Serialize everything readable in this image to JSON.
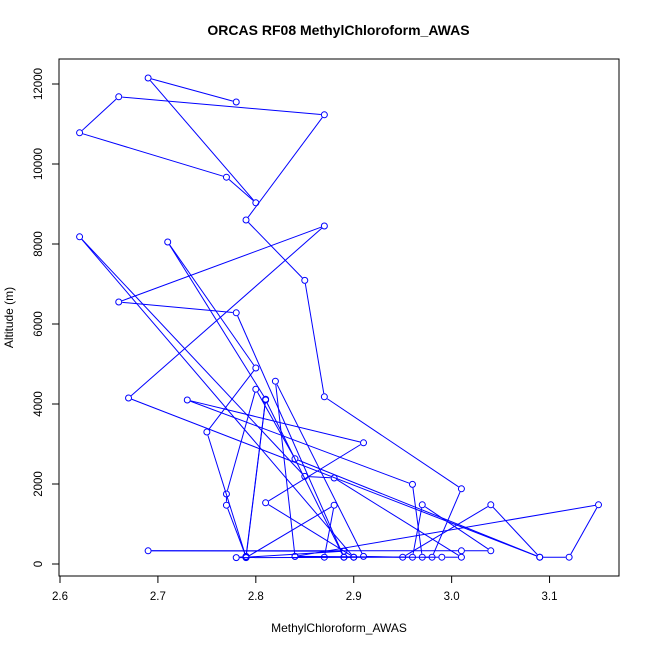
{
  "chart_data": {
    "type": "line",
    "title": "ORCAS RF08 MethylChloroform_AWAS",
    "xlabel": "MethylChloroform_AWAS",
    "ylabel": "Altitude (m)",
    "xlim": [
      2.6,
      3.16
    ],
    "ylim": [
      0,
      12500
    ],
    "x_ticks": [
      2.6,
      2.7,
      2.8,
      2.9,
      3.0,
      3.1
    ],
    "x_tick_labels": [
      "2.6",
      "2.7",
      "2.8",
      "2.9",
      "3.0",
      "3.1"
    ],
    "y_ticks": [
      0,
      2000,
      4000,
      6000,
      8000,
      10000,
      12000
    ],
    "y_tick_labels": [
      "0",
      "2000",
      "4000",
      "6000",
      "8000",
      "10000",
      "12000"
    ],
    "grid": false,
    "line_color": "#0000ff",
    "series": [
      {
        "name": "",
        "points": [
          [
            2.78,
            11550
          ],
          [
            2.69,
            12150
          ],
          [
            2.8,
            9030
          ],
          [
            2.77,
            9670
          ],
          [
            2.62,
            10780
          ],
          [
            2.66,
            11680
          ],
          [
            2.87,
            11230
          ],
          [
            2.79,
            8600
          ],
          [
            2.85,
            7090
          ],
          [
            2.87,
            4180
          ],
          [
            3.01,
            1880
          ],
          [
            2.98,
            170
          ],
          [
            2.78,
            160
          ],
          [
            2.79,
            190
          ],
          [
            2.81,
            4120
          ],
          [
            2.71,
            8050
          ],
          [
            2.8,
            4900
          ],
          [
            2.75,
            3300
          ],
          [
            2.79,
            170
          ],
          [
            2.89,
            320
          ],
          [
            2.69,
            330
          ],
          [
            3.01,
            330
          ],
          [
            3.04,
            330
          ],
          [
            2.97,
            1480
          ],
          [
            2.96,
            170
          ],
          [
            2.84,
            190
          ],
          [
            2.82,
            4570
          ],
          [
            2.91,
            190
          ],
          [
            2.95,
            170
          ],
          [
            3.04,
            1480
          ],
          [
            3.09,
            170
          ],
          [
            3.12,
            170
          ],
          [
            3.15,
            1480
          ],
          [
            2.84,
            190
          ],
          [
            2.87,
            170
          ],
          [
            2.88,
            1470
          ],
          [
            2.79,
            160
          ],
          [
            2.81,
            4100
          ],
          [
            2.89,
            170
          ],
          [
            2.9,
            170
          ],
          [
            2.81,
            1530
          ],
          [
            2.91,
            3030
          ],
          [
            2.73,
            4100
          ],
          [
            2.96,
            1990
          ],
          [
            2.97,
            170
          ],
          [
            2.99,
            170
          ],
          [
            3.01,
            170
          ],
          [
            2.88,
            2150
          ],
          [
            2.85,
            2190
          ],
          [
            2.62,
            8180
          ],
          [
            2.9,
            170
          ],
          [
            2.89,
            170
          ],
          [
            2.78,
            6280
          ],
          [
            2.66,
            6550
          ],
          [
            2.87,
            8450
          ],
          [
            2.67,
            4150
          ],
          [
            3.09,
            170
          ],
          [
            2.84,
            2630
          ],
          [
            2.8,
            4370
          ],
          [
            2.77,
            1750
          ],
          [
            2.77,
            1470
          ],
          [
            2.79,
            180
          ]
        ]
      }
    ]
  }
}
